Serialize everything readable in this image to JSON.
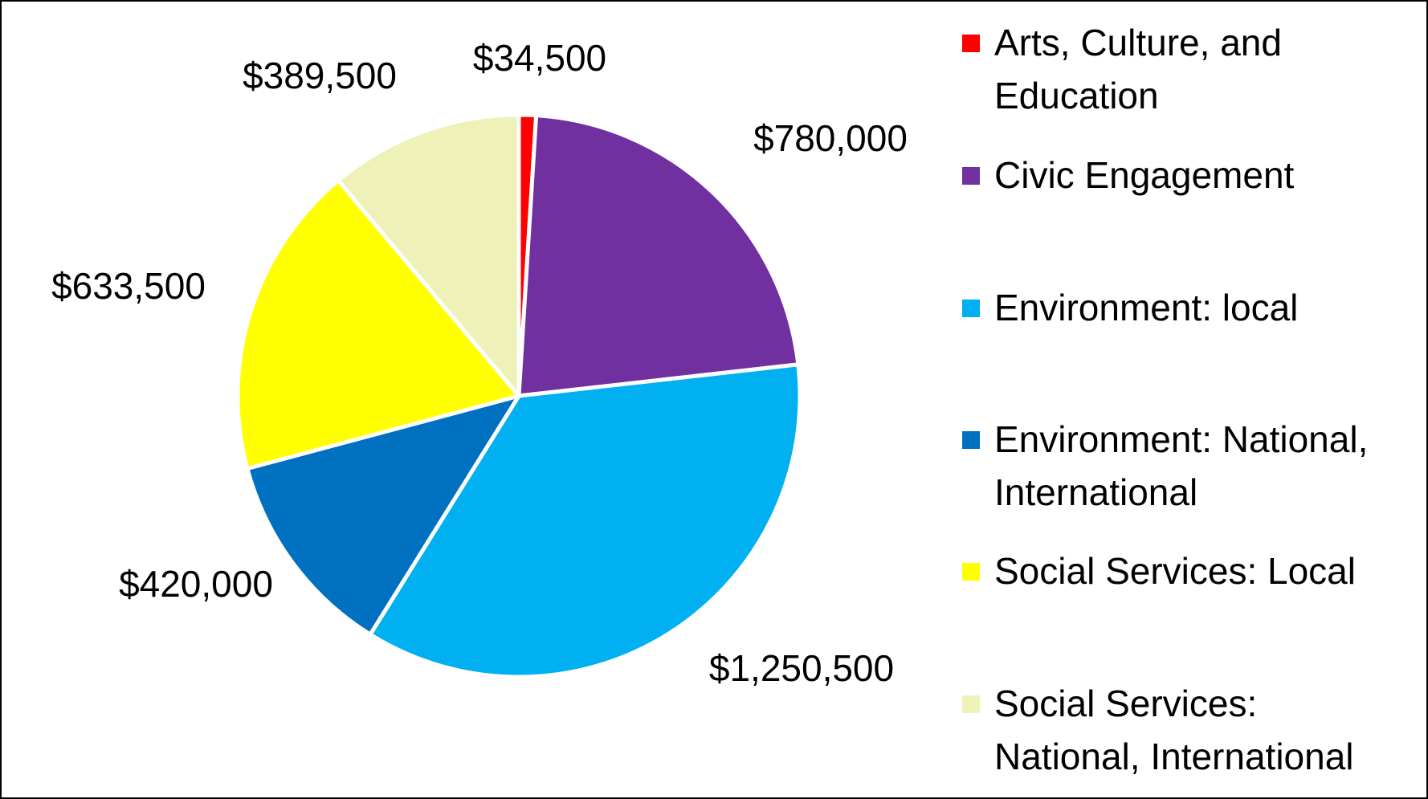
{
  "chart_data": {
    "type": "pie",
    "title": "",
    "categories": [
      "Arts, Culture, and Education",
      "Civic Engagement",
      "Environment: local",
      "Environment: National, International",
      "Social Services: Local",
      "Social Services: National, International"
    ],
    "values": [
      34500,
      780000,
      1250500,
      420000,
      633500,
      389500
    ],
    "labels": [
      "$34,500",
      "$780,000",
      "$1,250,500",
      "$420,000",
      "$633,500",
      "$389,500"
    ],
    "colors": [
      "#ff0000",
      "#7030a0",
      "#00b0f0",
      "#0070c0",
      "#ffff00",
      "#eef2b8"
    ],
    "legend": {
      "position": "right",
      "entries": [
        [
          "Arts, Culture, and",
          "Education"
        ],
        [
          "Civic Engagement"
        ],
        [
          "Environment: local"
        ],
        [
          "Environment: National,",
          "International"
        ],
        [
          "Social Services: Local"
        ],
        [
          "Social Services:",
          "National, International"
        ]
      ]
    }
  }
}
